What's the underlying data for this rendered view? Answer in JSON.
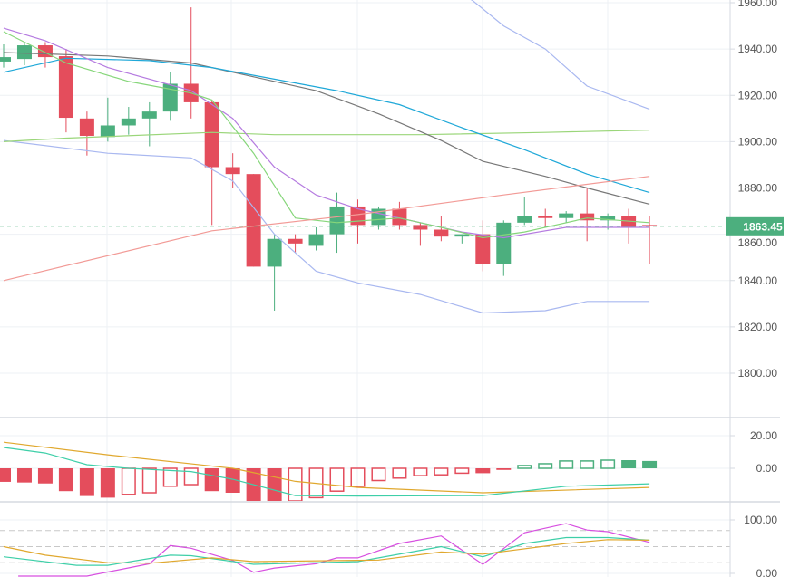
{
  "colors": {
    "up": "#4caf7e",
    "down": "#e44d5c",
    "grid": "#eef1f4",
    "axis": "#d6dae0"
  },
  "chart_data": [
    {
      "type": "candlestick",
      "panel": "price",
      "yticks": [
        "1960.00",
        "1940.00",
        "1920.00",
        "1900.00",
        "1880.00",
        "1860.00",
        "1840.00",
        "1820.00",
        "1800.00"
      ],
      "ytick_values": [
        1960,
        1940,
        1920,
        1900,
        1880,
        1860,
        1840,
        1820,
        1800
      ],
      "ylim": [
        1784,
        1961
      ],
      "last_price": 1863.45,
      "last_price_label": "1863.45",
      "candles": [
        [
          1934.6,
          1942,
          1932,
          1936.5
        ],
        [
          1935.7,
          1943,
          1933,
          1941.6
        ],
        [
          1941.6,
          1943,
          1932,
          1936.5
        ],
        [
          1936.9,
          1940,
          1904,
          1910.3
        ],
        [
          1910,
          1913,
          1894,
          1902.5
        ],
        [
          1902,
          1919,
          1900,
          1907
        ],
        [
          1907,
          1915,
          1903,
          1910
        ],
        [
          1910,
          1917,
          1898,
          1913
        ],
        [
          1913,
          1930,
          1909,
          1925
        ],
        [
          1925,
          1958,
          1910,
          1917
        ],
        [
          1917,
          1918,
          1864,
          1889
        ],
        [
          1889,
          1895,
          1880,
          1886
        ],
        [
          1886,
          1886,
          1846,
          1846
        ],
        [
          1846,
          1860,
          1827,
          1858
        ],
        [
          1858,
          1860,
          1852,
          1856
        ],
        [
          1855,
          1863,
          1853,
          1860
        ],
        [
          1860,
          1878,
          1852,
          1872
        ],
        [
          1872,
          1875,
          1856,
          1864
        ],
        [
          1864,
          1872,
          1862,
          1871
        ],
        [
          1871,
          1874,
          1862,
          1864
        ],
        [
          1864,
          1865,
          1855,
          1862
        ],
        [
          1862,
          1868,
          1857,
          1859
        ],
        [
          1859,
          1860,
          1856,
          1860
        ],
        [
          1860,
          1866,
          1844,
          1847
        ],
        [
          1847,
          1866,
          1842,
          1865
        ],
        [
          1865,
          1876,
          1864,
          1868
        ],
        [
          1868,
          1871,
          1863,
          1867
        ],
        [
          1867,
          1870,
          1865,
          1869
        ],
        [
          1869,
          1880,
          1857,
          1866
        ],
        [
          1866,
          1869,
          1862,
          1868
        ],
        [
          1868,
          1871,
          1856,
          1863
        ],
        [
          1864,
          1868,
          1847,
          1863.45
        ]
      ],
      "candle_fields": [
        "open",
        "high",
        "low",
        "close"
      ],
      "lines": [
        {
          "name": "bollinger-upper",
          "color": "#a9b8f0",
          "points": [
            [
              21,
              1968
            ],
            [
              22.5,
              1961
            ],
            [
              24,
              1950
            ],
            [
              26,
              1940
            ],
            [
              28,
              1924
            ],
            [
              31,
              1914
            ]
          ]
        },
        {
          "name": "bollinger-lower",
          "color": "#a9b8f0",
          "points": [
            [
              0,
              1900.5
            ],
            [
              5,
              1895
            ],
            [
              9,
              1893
            ],
            [
              11,
              1883
            ],
            [
              13,
              1860
            ],
            [
              15,
              1844
            ],
            [
              17,
              1839
            ],
            [
              20,
              1834
            ],
            [
              23,
              1826
            ],
            [
              26,
              1827
            ],
            [
              28,
              1831
            ],
            [
              31,
              1831
            ]
          ]
        },
        {
          "name": "ma-long-green",
          "color": "#9bd67a",
          "points": [
            [
              0,
              1900
            ],
            [
              3,
              1901.5
            ],
            [
              10,
              1904
            ],
            [
              13,
              1903
            ],
            [
              20,
              1903
            ],
            [
              26,
              1904
            ],
            [
              31,
              1905
            ]
          ]
        },
        {
          "name": "ma-grey",
          "color": "#777777",
          "points": [
            [
              0,
              1938.5
            ],
            [
              5,
              1937
            ],
            [
              9,
              1934
            ],
            [
              12,
              1928
            ],
            [
              15,
              1922
            ],
            [
              18,
              1912
            ],
            [
              21,
              1900.5
            ],
            [
              23,
              1891.5
            ],
            [
              26,
              1885
            ],
            [
              28,
              1880
            ],
            [
              31,
              1873
            ]
          ]
        },
        {
          "name": "ma-cyan",
          "color": "#1fa8d8",
          "points": [
            [
              0,
              1930
            ],
            [
              3,
              1936
            ],
            [
              7,
              1935
            ],
            [
              10,
              1932
            ],
            [
              13,
              1927
            ],
            [
              16,
              1922
            ],
            [
              19,
              1916
            ],
            [
              22,
              1906
            ],
            [
              25,
              1896.5
            ],
            [
              28,
              1886
            ],
            [
              31,
              1878
            ]
          ]
        },
        {
          "name": "ma-purple",
          "color": "#b57be0",
          "points": [
            [
              0,
              1949
            ],
            [
              2,
              1943.6
            ],
            [
              5,
              1932
            ],
            [
              9,
              1922
            ],
            [
              11,
              1910
            ],
            [
              13,
              1889
            ],
            [
              15,
              1877
            ],
            [
              17,
              1871
            ],
            [
              19,
              1867
            ],
            [
              22,
              1861
            ],
            [
              24,
              1858.5
            ],
            [
              27,
              1863
            ],
            [
              31,
              1863
            ]
          ]
        },
        {
          "name": "ma-short-green",
          "color": "#86d67a",
          "points": [
            [
              0,
              1947.5
            ],
            [
              3,
              1934
            ],
            [
              6,
              1926
            ],
            [
              9,
              1921
            ],
            [
              10,
              1918
            ],
            [
              12,
              1895
            ],
            [
              14,
              1867
            ],
            [
              16,
              1865
            ],
            [
              19,
              1867
            ],
            [
              21,
              1863
            ],
            [
              23,
              1858.5
            ],
            [
              25,
              1861
            ],
            [
              28,
              1867
            ],
            [
              31,
              1865
            ]
          ]
        },
        {
          "name": "ma-red",
          "color": "#f29a96",
          "points": [
            [
              0,
              1840
            ],
            [
              10,
              1861.5
            ],
            [
              17,
              1868.5
            ],
            [
              24,
              1877
            ],
            [
              31,
              1885
            ]
          ]
        }
      ]
    },
    {
      "type": "bar",
      "panel": "macd",
      "yticks": [
        "20.00",
        "0.00"
      ],
      "ytick_values": [
        20,
        0
      ],
      "ylim": [
        -22,
        26
      ],
      "histogram": [
        -8.3,
        -8.7,
        -9.3,
        -14,
        -17,
        -18,
        -16,
        -15,
        -11,
        -10,
        -14,
        -15,
        -20,
        -20.5,
        -20,
        -18,
        -14,
        -11,
        -7.5,
        -6,
        -4.5,
        -4,
        -3,
        -3,
        -1,
        1.7,
        2.8,
        4.5,
        4.5,
        5,
        5,
        4.5
      ],
      "filled": [
        1,
        1,
        1,
        1,
        1,
        1,
        0,
        0,
        0,
        0,
        1,
        1,
        1,
        1,
        0,
        0,
        0,
        0,
        0,
        0,
        0,
        0,
        0,
        1,
        1,
        0,
        0,
        0,
        0,
        0,
        1,
        1
      ],
      "lines": [
        {
          "name": "macd-signal-orange",
          "color": "#e0a82e",
          "points": [
            [
              0,
              16
            ],
            [
              5,
              8.3
            ],
            [
              11,
              0
            ],
            [
              14,
              -8
            ],
            [
              17,
              -11.7
            ],
            [
              23,
              -15
            ],
            [
              31,
              -11.7
            ]
          ]
        },
        {
          "name": "macd-line-cyan",
          "color": "#3ecfa8",
          "points": [
            [
              0,
              12.8
            ],
            [
              2,
              9.4
            ],
            [
              4,
              2.2
            ],
            [
              6,
              0
            ],
            [
              9,
              -2
            ],
            [
              11,
              -6.7
            ],
            [
              14,
              -16.7
            ],
            [
              17,
              -17
            ],
            [
              23,
              -16.7
            ],
            [
              27,
              -11
            ],
            [
              31,
              -9.5
            ]
          ]
        }
      ]
    },
    {
      "type": "line",
      "panel": "stochastic",
      "yticks": [
        "100.00",
        "0.00"
      ],
      "ytick_values": [
        100,
        0
      ],
      "ylim": [
        -0.5,
        105
      ],
      "levels": [
        80,
        50,
        20
      ],
      "lines": [
        {
          "name": "stoch-magenta",
          "color": "#d74fe0",
          "points": [
            [
              0.7,
              -5
            ],
            [
              4,
              -5
            ],
            [
              7,
              18
            ],
            [
              8,
              52
            ],
            [
              9,
              47
            ],
            [
              11,
              24
            ],
            [
              12,
              2
            ],
            [
              13,
              10
            ],
            [
              15,
              18
            ],
            [
              16,
              29
            ],
            [
              17,
              29
            ],
            [
              19,
              56
            ],
            [
              21,
              70
            ],
            [
              23,
              17
            ],
            [
              25,
              76
            ],
            [
              27,
              93
            ],
            [
              28,
              81
            ],
            [
              29,
              78
            ],
            [
              31,
              58
            ]
          ]
        },
        {
          "name": "stoch-cyan",
          "color": "#3ecfa8",
          "points": [
            [
              0,
              31
            ],
            [
              3.5,
              15
            ],
            [
              5,
              15
            ],
            [
              8,
              34
            ],
            [
              9,
              33
            ],
            [
              12,
              17
            ],
            [
              17,
              22
            ],
            [
              21,
              50
            ],
            [
              23,
              31
            ],
            [
              25,
              56
            ],
            [
              27,
              67
            ],
            [
              29,
              67
            ],
            [
              31,
              62
            ]
          ]
        },
        {
          "name": "stoch-orange",
          "color": "#e0a82e",
          "points": [
            [
              0,
              50
            ],
            [
              2,
              34
            ],
            [
              5,
              20
            ],
            [
              7,
              19
            ],
            [
              10,
              29
            ],
            [
              12,
              22
            ],
            [
              18,
              25
            ],
            [
              21,
              40
            ],
            [
              23,
              36
            ],
            [
              27,
              56
            ],
            [
              29,
              63
            ],
            [
              31,
              62
            ]
          ]
        }
      ]
    }
  ]
}
